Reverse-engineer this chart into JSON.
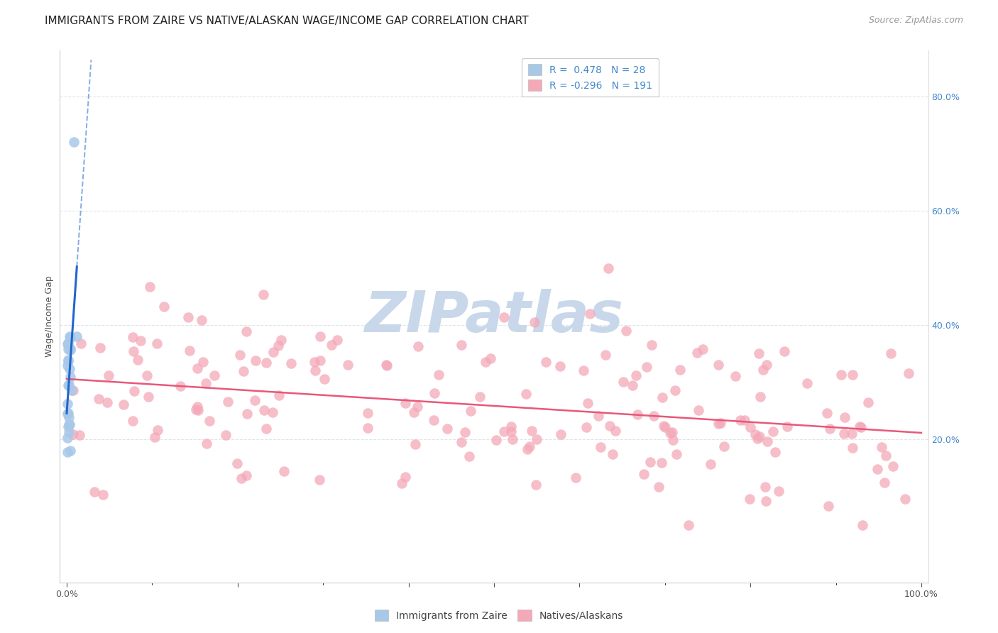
{
  "title": "IMMIGRANTS FROM ZAIRE VS NATIVE/ALASKAN WAGE/INCOME GAP CORRELATION CHART",
  "source": "Source: ZipAtlas.com",
  "ylabel": "Wage/Income Gap",
  "r_blue": 0.478,
  "n_blue": 28,
  "r_pink": -0.296,
  "n_pink": 191,
  "blue_scatter_color": "#a8c8e8",
  "pink_scatter_color": "#f4a8b8",
  "blue_line_color": "#2266cc",
  "pink_line_color": "#e85878",
  "watermark_color": "#c8d8ea",
  "title_fontsize": 11,
  "source_fontsize": 9,
  "axis_label_fontsize": 9,
  "tick_fontsize": 9,
  "legend_fontsize": 10,
  "right_tick_color": "#4488cc",
  "grid_color": "#e0e4e8",
  "xlim_min": -0.008,
  "xlim_max": 1.008,
  "ylim_min": -0.05,
  "ylim_max": 0.88
}
